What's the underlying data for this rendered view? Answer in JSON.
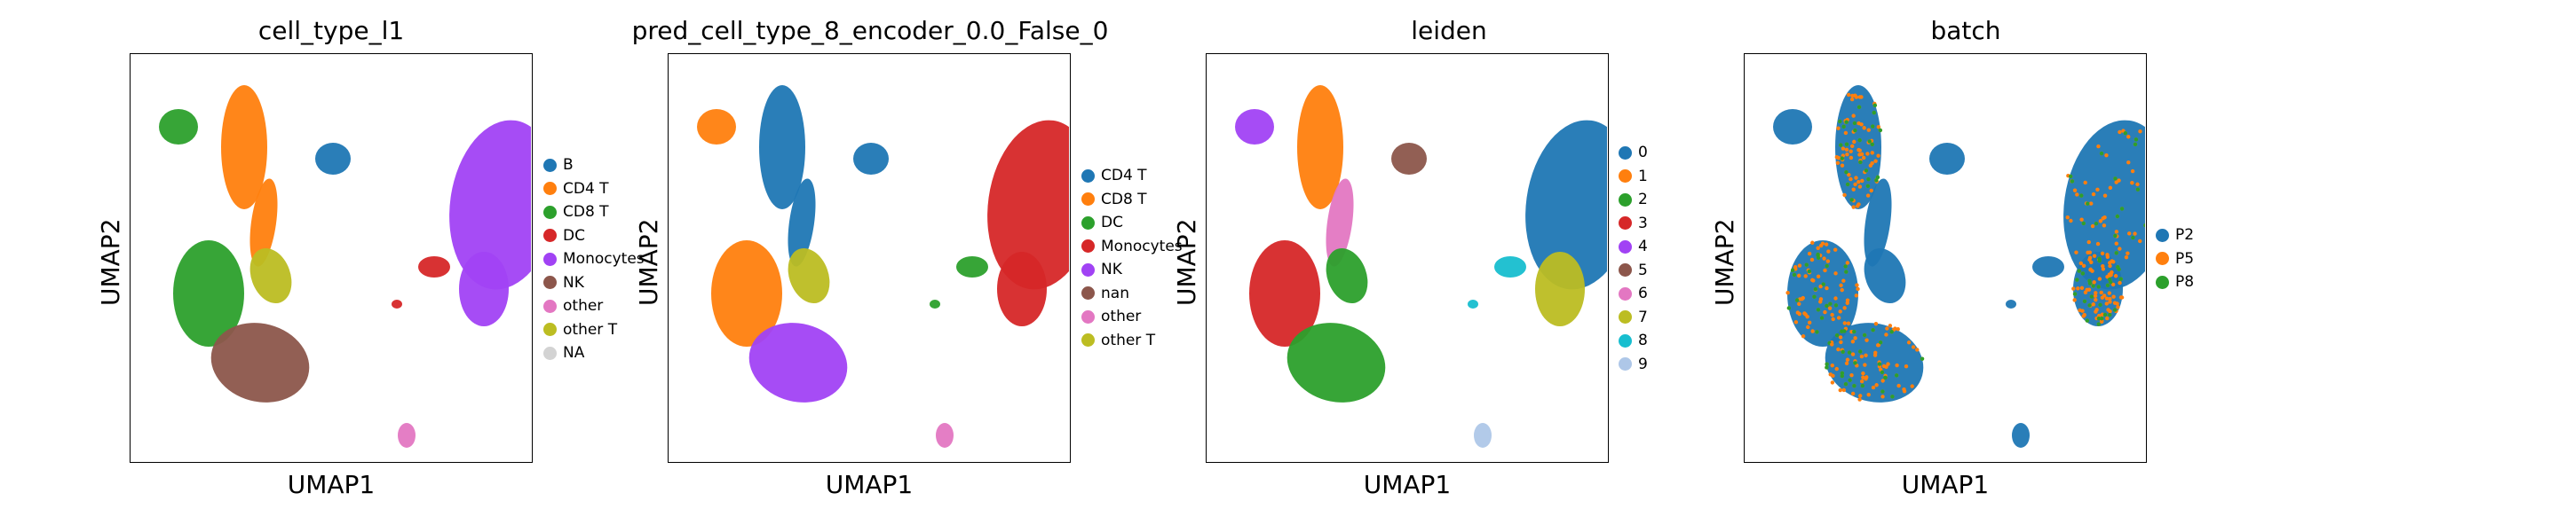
{
  "palette": {
    "tab_blue": "#1f77b4",
    "tab_orange": "#ff7f0e",
    "tab_green": "#2ca02c",
    "tab_red": "#d62728",
    "tab_purple": "#9467bd",
    "tab_brown": "#8c564b",
    "tab_pink": "#e377c2",
    "tab_olive": "#bcbd22",
    "tab_cyan": "#17becf",
    "light_blue": "#aec7e8",
    "violet": "#a142f4",
    "na_grey": "#d3d3d3"
  },
  "chart_data": [
    {
      "type": "scatter",
      "title": "cell_type_l1",
      "xlabel": "UMAP1",
      "ylabel": "UMAP2",
      "legend_position": "right",
      "legend": [
        {
          "label": "B",
          "color": "#1f77b4"
        },
        {
          "label": "CD4 T",
          "color": "#ff7f0e"
        },
        {
          "label": "CD8 T",
          "color": "#2ca02c"
        },
        {
          "label": "DC",
          "color": "#d62728"
        },
        {
          "label": "Monocytes",
          "color": "#a142f4"
        },
        {
          "label": "NK",
          "color": "#8c564b"
        },
        {
          "label": "other",
          "color": "#e377c2"
        },
        {
          "label": "other T",
          "color": "#bcbd22"
        },
        {
          "label": "NA",
          "color": "#d3d3d3"
        }
      ]
    },
    {
      "type": "scatter",
      "title": "pred_cell_type_8_encoder_0.0_False_0",
      "xlabel": "UMAP1",
      "ylabel": "UMAP2",
      "legend_position": "right",
      "legend": [
        {
          "label": "CD4 T",
          "color": "#1f77b4"
        },
        {
          "label": "CD8 T",
          "color": "#ff7f0e"
        },
        {
          "label": "DC",
          "color": "#2ca02c"
        },
        {
          "label": "Monocytes",
          "color": "#d62728"
        },
        {
          "label": "NK",
          "color": "#a142f4"
        },
        {
          "label": "nan",
          "color": "#8c564b"
        },
        {
          "label": "other",
          "color": "#e377c2"
        },
        {
          "label": "other T",
          "color": "#bcbd22"
        }
      ]
    },
    {
      "type": "scatter",
      "title": "leiden",
      "xlabel": "UMAP1",
      "ylabel": "UMAP2",
      "legend_position": "right",
      "legend": [
        {
          "label": "0",
          "color": "#1f77b4"
        },
        {
          "label": "1",
          "color": "#ff7f0e"
        },
        {
          "label": "2",
          "color": "#2ca02c"
        },
        {
          "label": "3",
          "color": "#d62728"
        },
        {
          "label": "4",
          "color": "#a142f4"
        },
        {
          "label": "5",
          "color": "#8c564b"
        },
        {
          "label": "6",
          "color": "#e377c2"
        },
        {
          "label": "7",
          "color": "#bcbd22"
        },
        {
          "label": "8",
          "color": "#17becf"
        },
        {
          "label": "9",
          "color": "#aec7e8"
        }
      ]
    },
    {
      "type": "scatter",
      "title": "batch",
      "xlabel": "UMAP1",
      "ylabel": "UMAP2",
      "legend_position": "right",
      "legend": [
        {
          "label": "P2",
          "color": "#1f77b4"
        },
        {
          "label": "P5",
          "color": "#ff7f0e"
        },
        {
          "label": "P8",
          "color": "#2ca02c"
        }
      ]
    }
  ]
}
